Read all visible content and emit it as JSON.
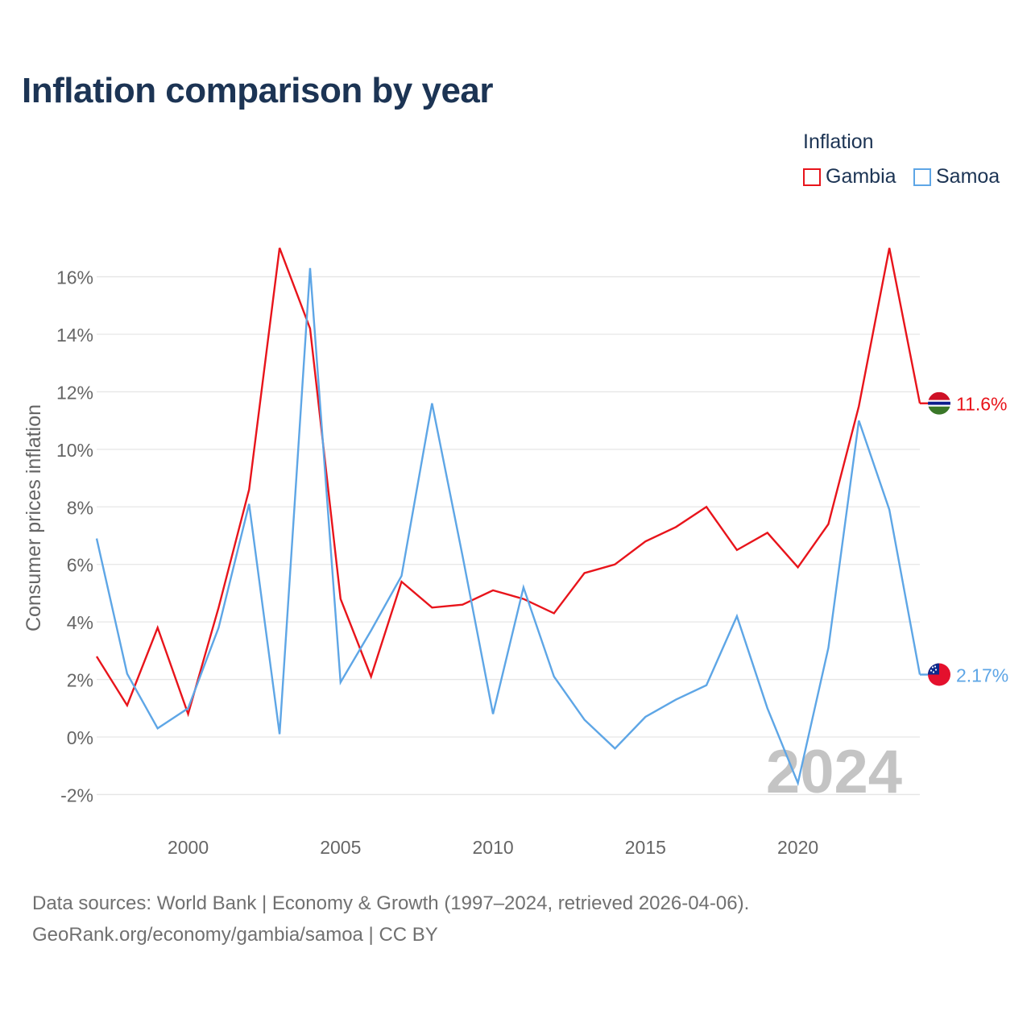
{
  "title": "Inflation comparison by year",
  "legend": {
    "title": "Inflation",
    "items": [
      {
        "label": "Gambia",
        "color": "#e8141b"
      },
      {
        "label": "Samoa",
        "color": "#5ea6e6"
      }
    ]
  },
  "year_watermark": "2024",
  "source": {
    "line1": "Data sources: World Bank | Economy & Growth (1997–2024, retrieved 2026-04-06).",
    "line2": "GeoRank.org/economy/gambia/samoa | CC BY"
  },
  "chart_data": {
    "type": "line",
    "ylabel": "Consumer prices inflation",
    "xlabel": "",
    "x": [
      1997,
      1998,
      1999,
      2000,
      2001,
      2002,
      2003,
      2004,
      2005,
      2006,
      2007,
      2008,
      2009,
      2010,
      2011,
      2012,
      2013,
      2014,
      2015,
      2016,
      2017,
      2018,
      2019,
      2020,
      2021,
      2022,
      2023,
      2024
    ],
    "xlim": [
      1997,
      2024
    ],
    "ylim": [
      -2.8,
      17.5
    ],
    "x_ticks": [
      2000,
      2005,
      2010,
      2015,
      2020
    ],
    "y_ticks": [
      -2,
      0,
      2,
      4,
      6,
      8,
      10,
      12,
      14,
      16
    ],
    "y_tick_suffix": "%",
    "series": [
      {
        "name": "Gambia",
        "color": "#e8141b",
        "end_label": "11.6%",
        "values": [
          2.8,
          1.1,
          3.8,
          0.8,
          4.5,
          8.6,
          17.0,
          14.2,
          4.8,
          2.1,
          5.4,
          4.5,
          4.6,
          5.1,
          4.8,
          4.3,
          5.7,
          6.0,
          6.8,
          7.3,
          8.0,
          6.5,
          7.1,
          5.9,
          7.4,
          11.5,
          17.0,
          11.6
        ]
      },
      {
        "name": "Samoa",
        "color": "#5ea6e6",
        "end_label": "2.17%",
        "values": [
          6.9,
          2.2,
          0.3,
          1.0,
          3.8,
          8.1,
          0.1,
          16.3,
          1.9,
          3.7,
          5.6,
          11.6,
          6.3,
          0.8,
          5.2,
          2.1,
          0.6,
          -0.4,
          0.7,
          1.3,
          1.8,
          4.2,
          1.0,
          -1.6,
          3.1,
          11.0,
          7.9,
          2.17
        ]
      }
    ]
  }
}
